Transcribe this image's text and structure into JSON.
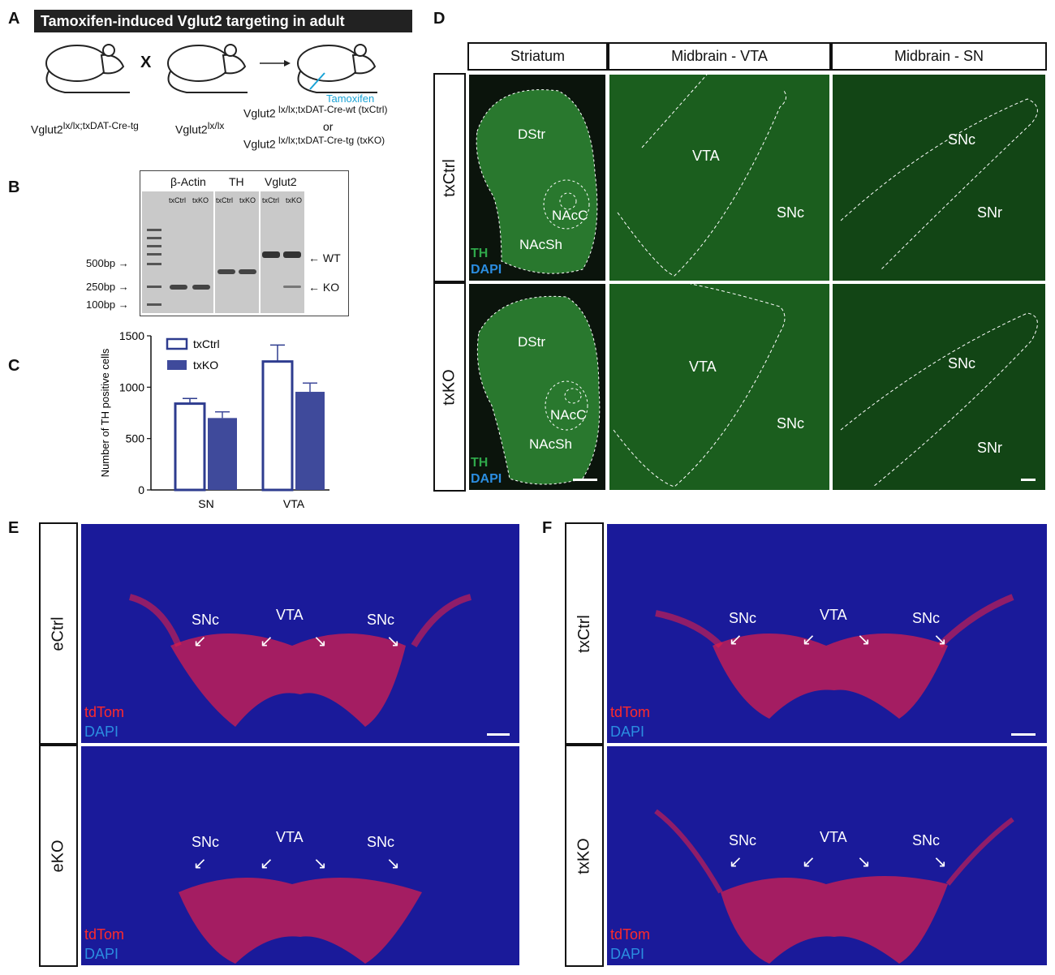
{
  "panel_letters": {
    "a": "A",
    "b": "B",
    "c": "C",
    "d": "D",
    "e": "E",
    "f": "F"
  },
  "panel_a": {
    "title": "Tamoxifen-induced Vglut2 targeting in adult",
    "cross_symbol": "X",
    "tamoxifen_label": "Tamoxifen",
    "parent1": {
      "base": "Vglut2",
      "sup": "lx/lx;txDAT-Cre-tg"
    },
    "parent2": {
      "base": "Vglut2",
      "sup": "lx/lx"
    },
    "offspring1": {
      "base": "Vglut2",
      "sup": " lx/lx;txDAT-Cre-wt (txCtrl)"
    },
    "or_label": "or",
    "offspring2": {
      "base": "Vglut2",
      "sup": " lx/lx;txDAT-Cre-tg (txKO)"
    }
  },
  "panel_b": {
    "groups": [
      "β-Actin",
      "TH",
      "Vglut2"
    ],
    "lane_labels": [
      "txCtrl",
      "txKO"
    ],
    "ladder": [
      "500bp",
      "250bp",
      "100bp"
    ],
    "band_labels": [
      "WT",
      "KO"
    ]
  },
  "chart_data": {
    "type": "bar",
    "categories": [
      "SN",
      "VTA"
    ],
    "series": [
      {
        "name": "txCtrl",
        "values": [
          840,
          1250
        ],
        "errors": [
          50,
          160
        ],
        "style": "outline",
        "color": "#2e3c8f"
      },
      {
        "name": "txKO",
        "values": [
          700,
          955
        ],
        "errors": [
          60,
          85
        ],
        "style": "filled",
        "color": "#3f4a9b"
      }
    ],
    "ylabel": "Number of TH positive cells",
    "yticks": [
      0,
      500,
      1000,
      1500
    ],
    "ylim": [
      0,
      1500
    ],
    "legend_position": "top-left"
  },
  "panel_d": {
    "columns": [
      "Striatum",
      "Midbrain - VTA",
      "Midbrain - SN"
    ],
    "rows": [
      "txCtrl",
      "txKO"
    ],
    "striatum_regions": [
      "DStr",
      "NAcC",
      "NAcSh"
    ],
    "vta_regions": [
      "VTA",
      "SNc"
    ],
    "sn_regions": [
      "SNc",
      "SNr"
    ],
    "stain_th": "TH",
    "stain_dapi": "DAPI"
  },
  "panel_e": {
    "rows": [
      "eCtrl",
      "eKO"
    ],
    "regions": [
      "SNc",
      "VTA",
      "SNc"
    ],
    "stain_tdtom": "tdTom",
    "stain_dapi": "DAPI"
  },
  "panel_f": {
    "rows": [
      "txCtrl",
      "txKO"
    ],
    "regions": [
      "SNc",
      "VTA",
      "SNc"
    ],
    "stain_tdtom": "tdTom",
    "stain_dapi": "DAPI"
  }
}
